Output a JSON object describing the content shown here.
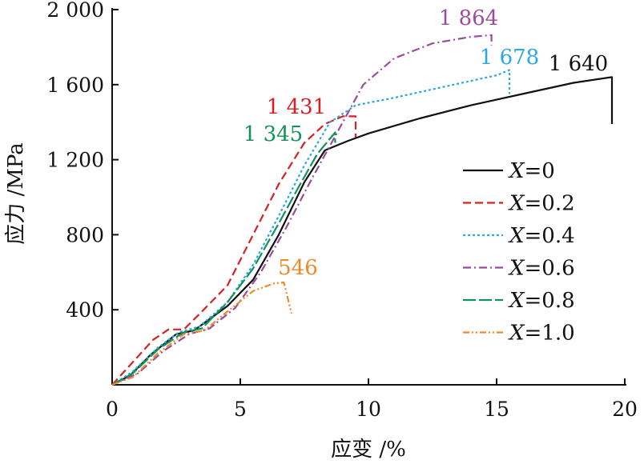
{
  "chart_data": {
    "type": "line",
    "title": "",
    "xlabel": "应变 /%",
    "ylabel": "应力 /MPa",
    "xlim": [
      0,
      20
    ],
    "ylim": [
      0,
      2000
    ],
    "xticks": [
      0,
      5,
      10,
      15,
      20
    ],
    "xtick_labels": [
      "0",
      "5",
      "10",
      "15",
      "20"
    ],
    "yticks": [
      400,
      800,
      1200,
      1600,
      2000
    ],
    "ytick_labels": [
      "400",
      "800",
      "1 200",
      "1 600",
      "2 000"
    ],
    "legend_position": "center-right",
    "series": [
      {
        "name": "X=0",
        "var": "X",
        "value": "=0",
        "color": "#111111",
        "dash": "none",
        "peak_label": "1 640",
        "peak": 1640,
        "x": [
          0,
          0.7,
          1.5,
          2.5,
          3.2,
          4.5,
          5.5,
          6.5,
          7.5,
          8.3,
          9.2,
          10,
          12,
          14,
          16,
          18,
          19.5,
          19.5
        ],
        "y": [
          0,
          50,
          160,
          270,
          290,
          420,
          560,
          800,
          1080,
          1250,
          1300,
          1340,
          1420,
          1490,
          1550,
          1610,
          1640,
          1390
        ]
      },
      {
        "name": "X=0.2",
        "var": "X",
        "value": "=0.2",
        "color": "#d62024",
        "dash": "10 5",
        "peak_label": "1 431",
        "peak": 1431,
        "x": [
          0,
          0.8,
          1.6,
          2.2,
          2.8,
          3.5,
          4.5,
          5.5,
          6.5,
          7.5,
          8.3,
          9.0,
          9.5,
          9.5
        ],
        "y": [
          0,
          120,
          240,
          295,
          295,
          390,
          530,
          800,
          1070,
          1290,
          1390,
          1431,
          1431,
          1320
        ]
      },
      {
        "name": "X=0.4",
        "var": "X",
        "value": "=0.4",
        "color": "#2ba8e0",
        "dash": "3 3",
        "peak_label": "1 678",
        "peak": 1678,
        "x": [
          0,
          0.8,
          1.8,
          2.6,
          3.4,
          4.5,
          5.5,
          6.5,
          7.5,
          8.5,
          9.5,
          11,
          13,
          15,
          15.5,
          15.5
        ],
        "y": [
          0,
          70,
          200,
          280,
          310,
          440,
          640,
          900,
          1170,
          1400,
          1490,
          1530,
          1590,
          1650,
          1678,
          1550
        ]
      },
      {
        "name": "X=0.6",
        "var": "X",
        "value": "=0.6",
        "color": "#9b4d9b",
        "dash": "10 4 2 4",
        "peak_label": "1 864",
        "peak": 1864,
        "x": [
          0,
          1.0,
          2.0,
          3.0,
          3.8,
          4.8,
          5.8,
          6.8,
          7.8,
          8.8,
          9.8,
          11,
          12.5,
          14,
          14.8,
          14.8
        ],
        "y": [
          0,
          60,
          180,
          270,
          300,
          410,
          600,
          840,
          1100,
          1350,
          1600,
          1740,
          1820,
          1855,
          1864,
          1810
        ]
      },
      {
        "name": "X=0.8",
        "var": "X",
        "value": "=0.8",
        "color": "#12925a",
        "dash": "16 4",
        "peak_label": "1 345",
        "peak": 1345,
        "x": [
          0,
          0.8,
          1.8,
          2.8,
          3.5,
          4.5,
          5.5,
          6.5,
          7.3,
          8.0,
          8.7,
          8.7
        ],
        "y": [
          0,
          60,
          190,
          280,
          300,
          440,
          620,
          860,
          1060,
          1230,
          1345,
          1290
        ]
      },
      {
        "name": "X=1.0",
        "var": "X",
        "value": "=1.0",
        "color": "#ee8a2a",
        "dash": "8 3 2 3 2 3",
        "peak_label": "546",
        "peak": 546,
        "x": [
          0,
          0.8,
          1.8,
          2.8,
          3.6,
          4.5,
          5.5,
          6.3,
          6.7,
          7.0
        ],
        "y": [
          0,
          40,
          170,
          270,
          290,
          390,
          500,
          540,
          546,
          380
        ]
      }
    ]
  }
}
